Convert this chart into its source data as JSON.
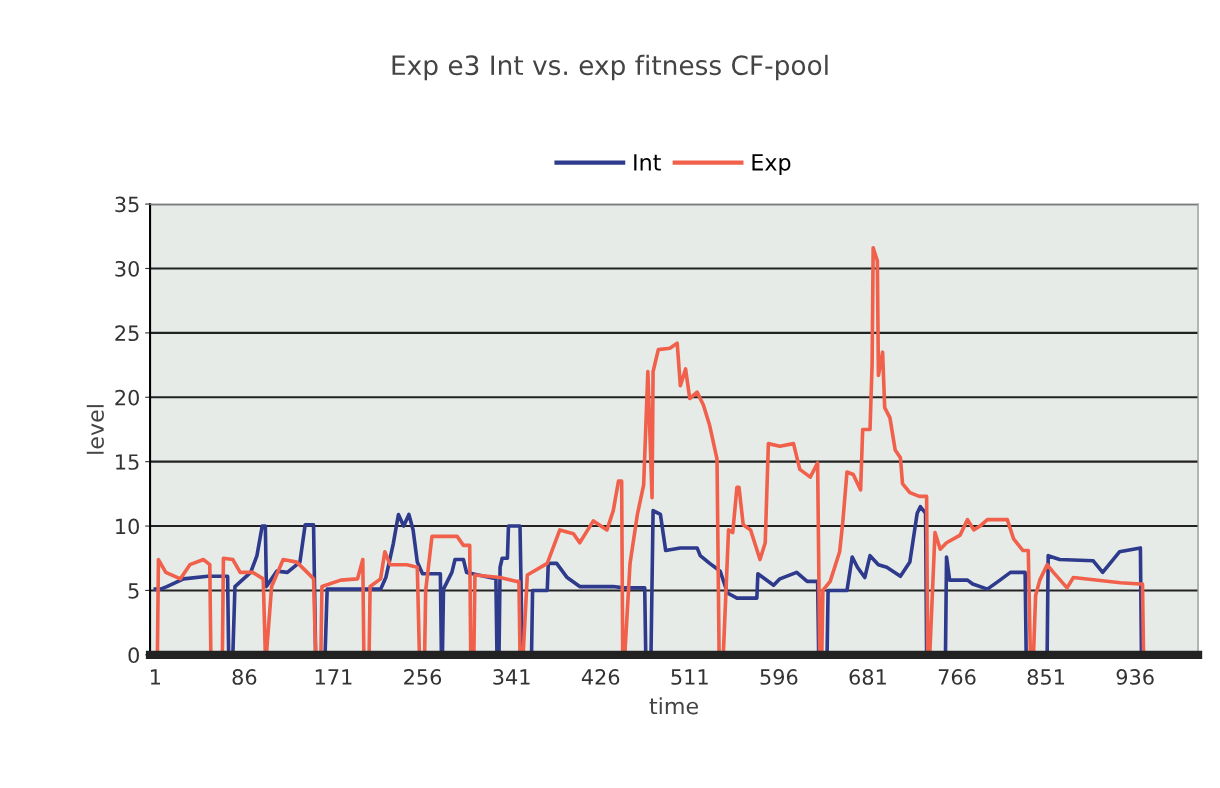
{
  "chart_data": {
    "type": "line",
    "title": "Exp e3 Int vs. exp fitness CF-pool",
    "xlabel": "time",
    "ylabel": "level",
    "legend": "top",
    "grid": "y",
    "xlim": [
      -4,
      996
    ],
    "ylim": [
      0,
      35
    ],
    "xticks": [
      1,
      86,
      171,
      256,
      341,
      426,
      511,
      596,
      681,
      766,
      851,
      936
    ],
    "yticks": [
      0,
      5,
      10,
      15,
      20,
      25,
      30,
      35
    ],
    "series": [
      {
        "name": "Int",
        "color": "#2e3a8c",
        "x": [
          1,
          6,
          12,
          28,
          51,
          70,
          71,
          75,
          77,
          92,
          98,
          103,
          106,
          107,
          117,
          127,
          139,
          144,
          152,
          154,
          163,
          165,
          194,
          216,
          221,
          228,
          233,
          238,
          243,
          247,
          251,
          256,
          273,
          274,
          275,
          276,
          284,
          287,
          295,
          298,
          326,
          327,
          329,
          330,
          332,
          337,
          338,
          349,
          350,
          351,
          360,
          361,
          375,
          376,
          384,
          394,
          406,
          438,
          448,
          468,
          469,
          474,
          476,
          483,
          488,
          502,
          518,
          521,
          530,
          535,
          540,
          547,
          556,
          575,
          576,
          591,
          597,
          613,
          623,
          633,
          634,
          642,
          643,
          661,
          666,
          671,
          678,
          683,
          691,
          699,
          712,
          721,
          728,
          731,
          736,
          737,
          755,
          756,
          759,
          776,
          781,
          795,
          807,
          817,
          831,
          832,
          852,
          853,
          864,
          896,
          905,
          921,
          941,
          942
        ],
        "values": [
          5.1,
          5.1,
          5.3,
          5.9,
          6.1,
          6.1,
          0,
          0,
          5.3,
          6.4,
          7.7,
          10,
          10,
          5.3,
          6.5,
          6.4,
          7.2,
          10.1,
          10.1,
          0,
          0,
          5.1,
          5.1,
          5.1,
          6.0,
          8.6,
          10.9,
          10.0,
          10.9,
          9.7,
          7.2,
          6.3,
          6.3,
          0,
          0,
          5.1,
          6.4,
          7.4,
          7.4,
          6.4,
          5.9,
          0,
          0,
          6.8,
          7.5,
          7.5,
          10,
          10,
          5.5,
          0,
          0,
          5,
          5,
          7.1,
          7.1,
          6.0,
          5.3,
          5.3,
          5.2,
          5.2,
          0,
          0,
          11.2,
          10.9,
          8.1,
          8.3,
          8.3,
          7.7,
          7.1,
          6.8,
          6.5,
          4.8,
          4.4,
          4.4,
          6.3,
          5.4,
          5.9,
          6.4,
          5.7,
          5.7,
          0,
          0,
          5,
          5,
          7.6,
          6.8,
          6.0,
          7.7,
          7.0,
          6.8,
          6.1,
          7.2,
          11,
          11.5,
          11,
          0,
          0,
          7.6,
          5.8,
          5.8,
          5.5,
          5.1,
          5.8,
          6.4,
          6.4,
          0,
          0,
          7.7,
          7.4,
          7.3,
          6.4,
          8.0,
          8.3,
          0
        ]
      },
      {
        "name": "Exp",
        "color": "#f0604a",
        "x": [
          1,
          3,
          4,
          11,
          25,
          34,
          47,
          53,
          54,
          65,
          66,
          75,
          82,
          94,
          104,
          106,
          107,
          112,
          123,
          136,
          146,
          152,
          154,
          159,
          160,
          178,
          194,
          199,
          200,
          205,
          206,
          216,
          220,
          225,
          241,
          251,
          253,
          258,
          259,
          265,
          289,
          295,
          301,
          302,
          305,
          306,
          330,
          346,
          348,
          349,
          352,
          356,
          375,
          387,
          400,
          406,
          419,
          432,
          438,
          443,
          446,
          447,
          449,
          454,
          461,
          467,
          471,
          475,
          476,
          481,
          492,
          499,
          502,
          507,
          511,
          518,
          524,
          530,
          537,
          539,
          543,
          548,
          552,
          556,
          558,
          562,
          569,
          578,
          583,
          586,
          597,
          610,
          616,
          626,
          633,
          635,
          637,
          638,
          645,
          654,
          657,
          661,
          667,
          674,
          676,
          683,
          685,
          686,
          690,
          691,
          695,
          697,
          702,
          707,
          712,
          714,
          721,
          730,
          737,
          738,
          740,
          745,
          750,
          756,
          769,
          776,
          782,
          788,
          795,
          814,
          820,
          829,
          834,
          836,
          839,
          841,
          845,
          852,
          858,
          871,
          877,
          922,
          941,
          943,
          944
        ],
        "values": [
          0,
          0,
          7.4,
          6.4,
          5.9,
          7.0,
          7.4,
          7.0,
          0,
          0,
          7.5,
          7.4,
          6.4,
          6.4,
          5.9,
          0,
          0,
          5.3,
          7.4,
          7.2,
          6.4,
          5.9,
          0,
          0,
          5.3,
          5.8,
          5.9,
          7.4,
          0,
          0,
          5.3,
          5.9,
          8.0,
          7.0,
          7.0,
          6.8,
          0,
          0,
          5.0,
          9.2,
          9.2,
          8.5,
          8.5,
          0,
          0,
          6.2,
          6.0,
          5.7,
          5.7,
          0,
          0,
          6.2,
          7.1,
          9.7,
          9.4,
          8.7,
          10.4,
          9.7,
          11.2,
          13.5,
          13.5,
          0,
          0,
          7.1,
          10.9,
          13.2,
          22,
          12.2,
          22,
          23.7,
          23.8,
          24.2,
          20.9,
          22.2,
          19.9,
          20.4,
          19.4,
          17.8,
          15.2,
          0,
          0,
          9.7,
          9.5,
          13,
          13,
          10.1,
          9.7,
          7.4,
          8.7,
          16.4,
          16.2,
          16.4,
          14.4,
          13.8,
          14.9,
          0,
          0,
          5,
          5.7,
          8,
          10.3,
          14.2,
          14.0,
          12.8,
          17.5,
          17.5,
          22.6,
          31.6,
          30.6,
          21.7,
          23.5,
          19.2,
          18.4,
          15.9,
          15.3,
          13.3,
          12.6,
          12.3,
          12.3,
          0,
          0,
          9.5,
          8.2,
          8.7,
          9.3,
          10.5,
          9.7,
          10,
          10.5,
          10.5,
          9.0,
          8.1,
          8.1,
          0,
          0,
          4.6,
          5.8,
          7.0,
          6.4,
          5.2,
          6.0,
          5.6,
          5.5,
          5.5,
          0
        ]
      }
    ]
  }
}
